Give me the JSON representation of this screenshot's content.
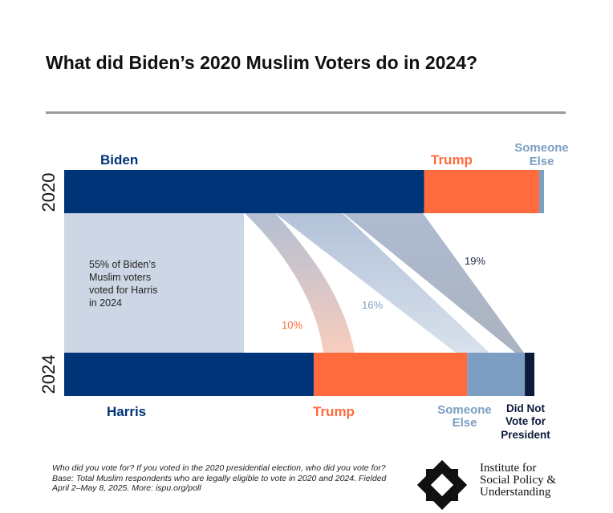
{
  "chart_data": {
    "type": "sankey",
    "title": "What did Biden’s 2020 Muslim Voters do in 2024?",
    "rows": [
      {
        "year": "2020",
        "segments": [
          {
            "name": "Biden",
            "value": 75,
            "color": "#003478"
          },
          {
            "name": "Trump",
            "value": 24,
            "color": "#FF6B3D"
          },
          {
            "name": "Someone Else",
            "value": 1,
            "color": "#7B9EC2"
          }
        ]
      },
      {
        "year": "2024",
        "segments": [
          {
            "name": "Harris",
            "value": 52,
            "color": "#003478"
          },
          {
            "name": "Trump",
            "value": 32,
            "color": "#FF6B3D"
          },
          {
            "name": "Someone Else",
            "value": 12,
            "color": "#7B9EC2"
          },
          {
            "name": "Did Not Vote for President",
            "value": 2,
            "color": "#0D1A3A"
          }
        ]
      }
    ],
    "flows": [
      {
        "from": "Biden",
        "to": "Harris",
        "value": 55,
        "label": "55% of Biden’s Muslim voters voted for Harris in 2024"
      },
      {
        "from": "Biden",
        "to": "Trump",
        "value": 10,
        "label": "10%",
        "color": "#FF6B3D"
      },
      {
        "from": "Biden",
        "to": "Someone Else",
        "value": 16,
        "label": "16%",
        "color": "#7B9EC2"
      },
      {
        "from": "Biden",
        "to": "Did Not Vote for President",
        "value": 19,
        "label": "19%",
        "color": "#1F2A44"
      }
    ]
  },
  "labels": {
    "biden": "Biden",
    "trump2020": "Trump",
    "someone2020_1": "Someone",
    "someone2020_2": "Else",
    "harris": "Harris",
    "trump2024": "Trump",
    "someone2024_1": "Someone",
    "someone2024_2": "Else",
    "dnv1": "Did Not",
    "dnv2": "Vote for",
    "dnv3": "President",
    "harris_note": [
      "55% of Biden’s",
      "Muslim voters",
      "voted for Harris",
      "in 2024"
    ]
  },
  "footnote": [
    "Who did you vote for? If you voted in the 2020 presidential election, who did you vote for?",
    "Base: Total Muslim respondents who are legally eligible to vote in 2020 and 2024. Fielded April 2–May 8, 2025. More: ispu.org/poll"
  ],
  "logo": {
    "name": [
      "Institute for",
      "Social Policy &",
      "Understanding"
    ]
  }
}
